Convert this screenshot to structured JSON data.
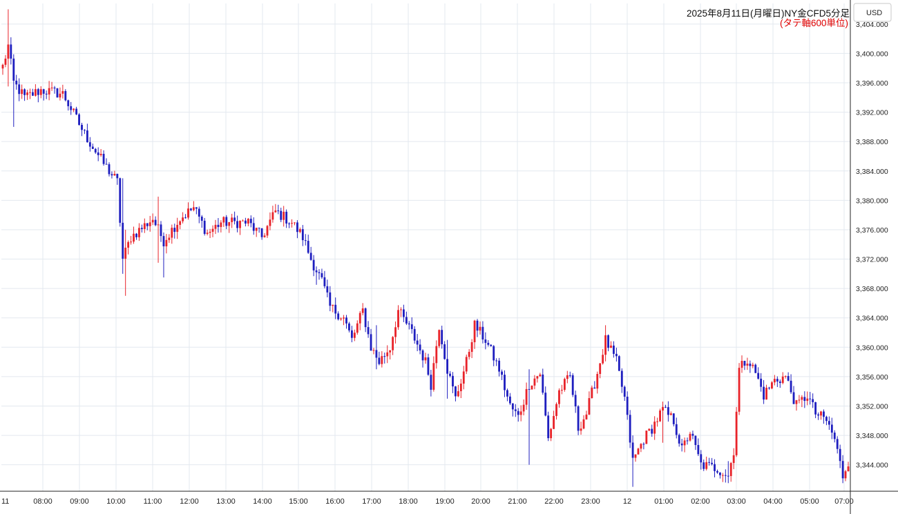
{
  "chart_data": {
    "type": "candlestick",
    "title": "2025年8月11日(月曜日)NY金CFD5分足",
    "subtitle": "(タテ軸600単位)",
    "currency": "USD",
    "ylim": [
      3340.4,
      3406.8
    ],
    "yticks": [
      "3,344.000",
      "3,348.000",
      "3,352.000",
      "3,356.000",
      "3,360.000",
      "3,364.000",
      "3,368.000",
      "3,372.000",
      "3,376.000",
      "3,380.000",
      "3,384.000",
      "3,388.000",
      "3,392.000",
      "3,396.000",
      "3,400.000",
      "3,404.000"
    ],
    "xticks": [
      "11",
      "08:00",
      "09:00",
      "10:00",
      "11:00",
      "12:00",
      "13:00",
      "14:00",
      "15:00",
      "16:00",
      "17:00",
      "18:00",
      "19:00",
      "20:00",
      "21:00",
      "22:00",
      "23:00",
      "12",
      "01:00",
      "02:00",
      "03:00",
      "04:00",
      "05:00",
      "07:00"
    ],
    "colors": {
      "up": "#e8232a",
      "down": "#1e1ebf",
      "grid": "#e3e8ef"
    },
    "grid": true,
    "anchors": [
      {
        "i": 0,
        "v": 3398.2
      },
      {
        "i": 2,
        "v": 3401.0
      },
      {
        "i": 4,
        "v": 3396.0
      },
      {
        "i": 8,
        "v": 3394.0
      },
      {
        "i": 14,
        "v": 3395.0
      },
      {
        "i": 22,
        "v": 3394.5
      },
      {
        "i": 25,
        "v": 3392.5
      },
      {
        "i": 30,
        "v": 3389.0
      },
      {
        "i": 37,
        "v": 3385.0
      },
      {
        "i": 42,
        "v": 3382.5
      },
      {
        "i": 44,
        "v": 3372.0
      },
      {
        "i": 47,
        "v": 3375.0
      },
      {
        "i": 55,
        "v": 3377.5
      },
      {
        "i": 59,
        "v": 3374.5
      },
      {
        "i": 65,
        "v": 3377.5
      },
      {
        "i": 70,
        "v": 3379.0
      },
      {
        "i": 75,
        "v": 3375.5
      },
      {
        "i": 80,
        "v": 3377.0
      },
      {
        "i": 90,
        "v": 3377.0
      },
      {
        "i": 95,
        "v": 3375.0
      },
      {
        "i": 100,
        "v": 3378.5
      },
      {
        "i": 106,
        "v": 3377.0
      },
      {
        "i": 110,
        "v": 3375.0
      },
      {
        "i": 113,
        "v": 3372.0
      },
      {
        "i": 117,
        "v": 3369.0
      },
      {
        "i": 120,
        "v": 3365.5
      },
      {
        "i": 125,
        "v": 3364.0
      },
      {
        "i": 128,
        "v": 3361.0
      },
      {
        "i": 132,
        "v": 3365.0
      },
      {
        "i": 135,
        "v": 3360.0
      },
      {
        "i": 138,
        "v": 3358.0
      },
      {
        "i": 142,
        "v": 3360.0
      },
      {
        "i": 145,
        "v": 3365.0
      },
      {
        "i": 150,
        "v": 3362.0
      },
      {
        "i": 155,
        "v": 3358.0
      },
      {
        "i": 157,
        "v": 3355.0
      },
      {
        "i": 160,
        "v": 3363.0
      },
      {
        "i": 163,
        "v": 3357.0
      },
      {
        "i": 166,
        "v": 3353.0
      },
      {
        "i": 170,
        "v": 3358.0
      },
      {
        "i": 173,
        "v": 3363.0
      },
      {
        "i": 177,
        "v": 3361.0
      },
      {
        "i": 182,
        "v": 3357.0
      },
      {
        "i": 186,
        "v": 3352.0
      },
      {
        "i": 189,
        "v": 3350.5
      },
      {
        "i": 193,
        "v": 3355.0
      },
      {
        "i": 197,
        "v": 3356.5
      },
      {
        "i": 200,
        "v": 3347.5
      },
      {
        "i": 204,
        "v": 3354.0
      },
      {
        "i": 208,
        "v": 3356.0
      },
      {
        "i": 211,
        "v": 3349.0
      },
      {
        "i": 214,
        "v": 3351.0
      },
      {
        "i": 218,
        "v": 3356.5
      },
      {
        "i": 221,
        "v": 3361.0
      },
      {
        "i": 225,
        "v": 3358.0
      },
      {
        "i": 228,
        "v": 3353.0
      },
      {
        "i": 231,
        "v": 3344.5
      },
      {
        "i": 235,
        "v": 3347.5
      },
      {
        "i": 238,
        "v": 3349.0
      },
      {
        "i": 242,
        "v": 3351.5
      },
      {
        "i": 246,
        "v": 3350.0
      },
      {
        "i": 249,
        "v": 3346.0
      },
      {
        "i": 252,
        "v": 3348.5
      },
      {
        "i": 256,
        "v": 3344.0
      },
      {
        "i": 262,
        "v": 3343.5
      },
      {
        "i": 266,
        "v": 3342.5
      },
      {
        "i": 268,
        "v": 3346.0
      },
      {
        "i": 270,
        "v": 3357.0
      },
      {
        "i": 273,
        "v": 3358.5
      },
      {
        "i": 276,
        "v": 3356.5
      },
      {
        "i": 279,
        "v": 3353.5
      },
      {
        "i": 283,
        "v": 3355.5
      },
      {
        "i": 287,
        "v": 3356.0
      },
      {
        "i": 291,
        "v": 3352.0
      },
      {
        "i": 295,
        "v": 3353.5
      },
      {
        "i": 298,
        "v": 3351.0
      },
      {
        "i": 302,
        "v": 3350.0
      },
      {
        "i": 305,
        "v": 3347.5
      },
      {
        "i": 308,
        "v": 3342.5
      },
      {
        "i": 310,
        "v": 3344.5
      }
    ],
    "spikes": [
      {
        "i": 2,
        "h": 3406.0,
        "l": 3395.5
      },
      {
        "i": 4,
        "h": 3399.5,
        "l": 3390.0
      },
      {
        "i": 44,
        "h": 3383.0,
        "l": 3370.0
      },
      {
        "i": 45,
        "h": 3376.0,
        "l": 3367.0
      },
      {
        "i": 57,
        "h": 3380.5,
        "l": 3371.5
      },
      {
        "i": 59,
        "h": 3375.0,
        "l": 3369.5
      },
      {
        "i": 115,
        "h": 3371.0,
        "l": 3368.5
      },
      {
        "i": 137,
        "h": 3363.0,
        "l": 3357.0
      },
      {
        "i": 163,
        "h": 3361.0,
        "l": 3353.0
      },
      {
        "i": 193,
        "h": 3357.0,
        "l": 3344.0
      },
      {
        "i": 221,
        "h": 3363.0,
        "l": 3359.0
      },
      {
        "i": 231,
        "h": 3348.0,
        "l": 3341.0
      },
      {
        "i": 242,
        "h": 3352.5,
        "l": 3347.0
      },
      {
        "i": 266,
        "h": 3344.5,
        "l": 3341.5
      },
      {
        "i": 308,
        "h": 3344.5,
        "l": 3341.5
      }
    ]
  }
}
